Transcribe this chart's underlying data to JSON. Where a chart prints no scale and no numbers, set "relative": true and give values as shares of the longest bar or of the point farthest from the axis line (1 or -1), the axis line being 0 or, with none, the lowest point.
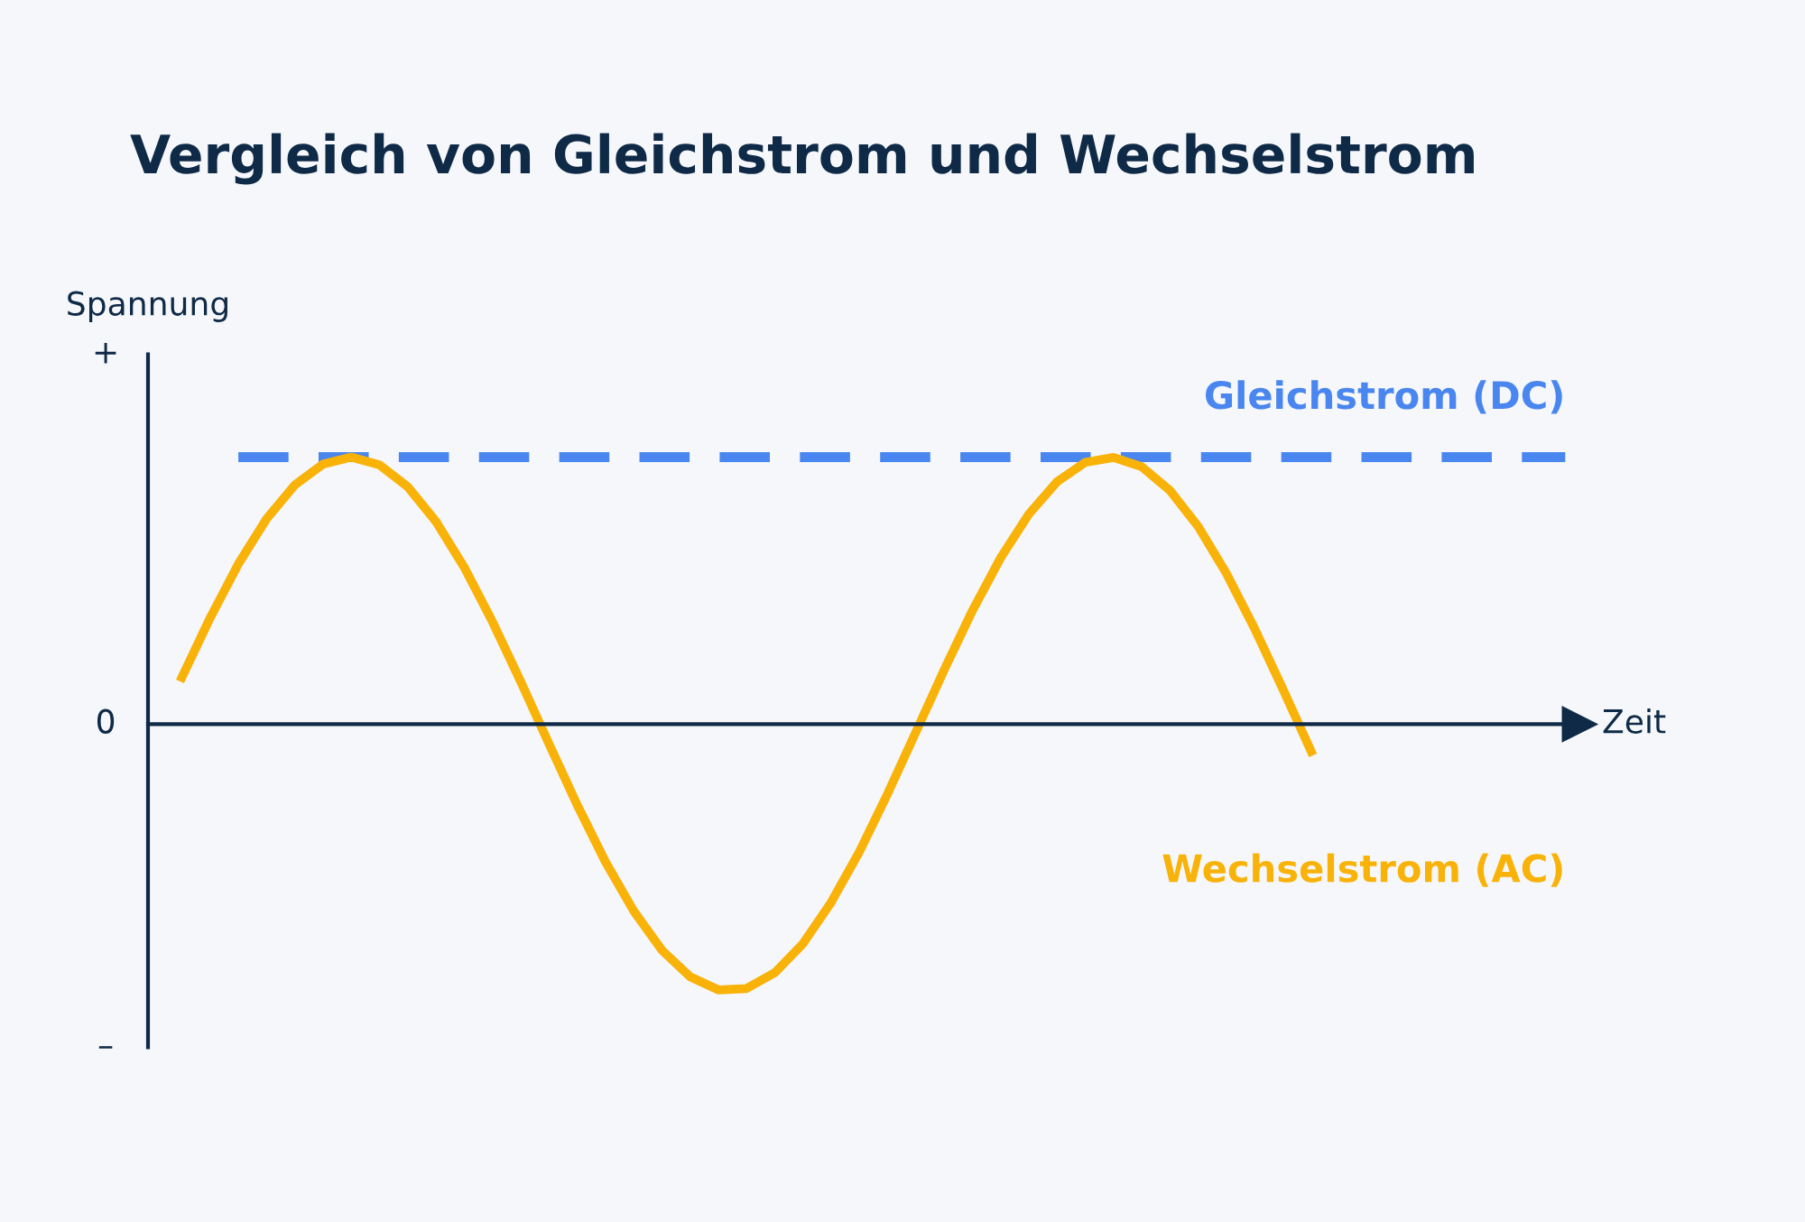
{
  "chart_data": {
    "type": "line",
    "title": "Vergleich von Gleichstrom und Wechselstrom",
    "xlabel": "Zeit",
    "ylabel": "Spannung",
    "categories": [
      null,
      null,
      null,
      null,
      null,
      null,
      null,
      null,
      null,
      null,
      null,
      null,
      null,
      null,
      null,
      null,
      null,
      null,
      null,
      null,
      null,
      null,
      null,
      null,
      null,
      null,
      null,
      null,
      null,
      null,
      null,
      null,
      null,
      null,
      null,
      null,
      null,
      null,
      null,
      null,
      null,
      null,
      null,
      null,
      null,
      null,
      null,
      null,
      null,
      null
    ],
    "relative": true,
    "annotations": [
      "+",
      "0",
      "–"
    ],
    "grid": false,
    "series": [
      {
        "name": "Gleichstrom (DC)",
        "color": "#4a86ef",
        "line_style": "dashed",
        "values": [
          null,
          null,
          1.0,
          1.0,
          1.0,
          1.0,
          1.0,
          1.0,
          1.0,
          1.0,
          1.0,
          1.0,
          1.0,
          1.0,
          1.0,
          1.0,
          1.0,
          1.0,
          1.0,
          1.0,
          1.0,
          1.0,
          1.0,
          1.0,
          1.0,
          1.0,
          1.0,
          1.0,
          1.0,
          1.0,
          1.0,
          1.0,
          1.0,
          1.0,
          1.0,
          1.0,
          1.0,
          1.0,
          1.0,
          1.0,
          1.0,
          1.0,
          1.0,
          1.0,
          1.0,
          1.0,
          1.0,
          1.0,
          1.0,
          1.0
        ]
      },
      {
        "name": "Wechselstrom (AC)",
        "color": "#f9b208",
        "line_style": "solid",
        "values": [
          0.175,
          0.398,
          0.6,
          0.769,
          0.896,
          0.974,
          1.0,
          0.971,
          0.889,
          0.759,
          0.588,
          0.384,
          0.16,
          -0.073,
          -0.302,
          -0.515,
          -0.699,
          -0.846,
          -0.946,
          -0.995,
          -0.99,
          -0.931,
          -0.822,
          -0.667,
          -0.477,
          -0.26,
          -0.029,
          0.203,
          0.425,
          0.623,
          0.787,
          0.908,
          0.981,
          0.999,
          0.964,
          0.875,
          0.74,
          0.564,
          0.357,
          0.131,
          -0.102,
          null,
          null,
          null,
          null,
          null,
          null,
          null,
          null,
          null
        ]
      }
    ]
  }
}
